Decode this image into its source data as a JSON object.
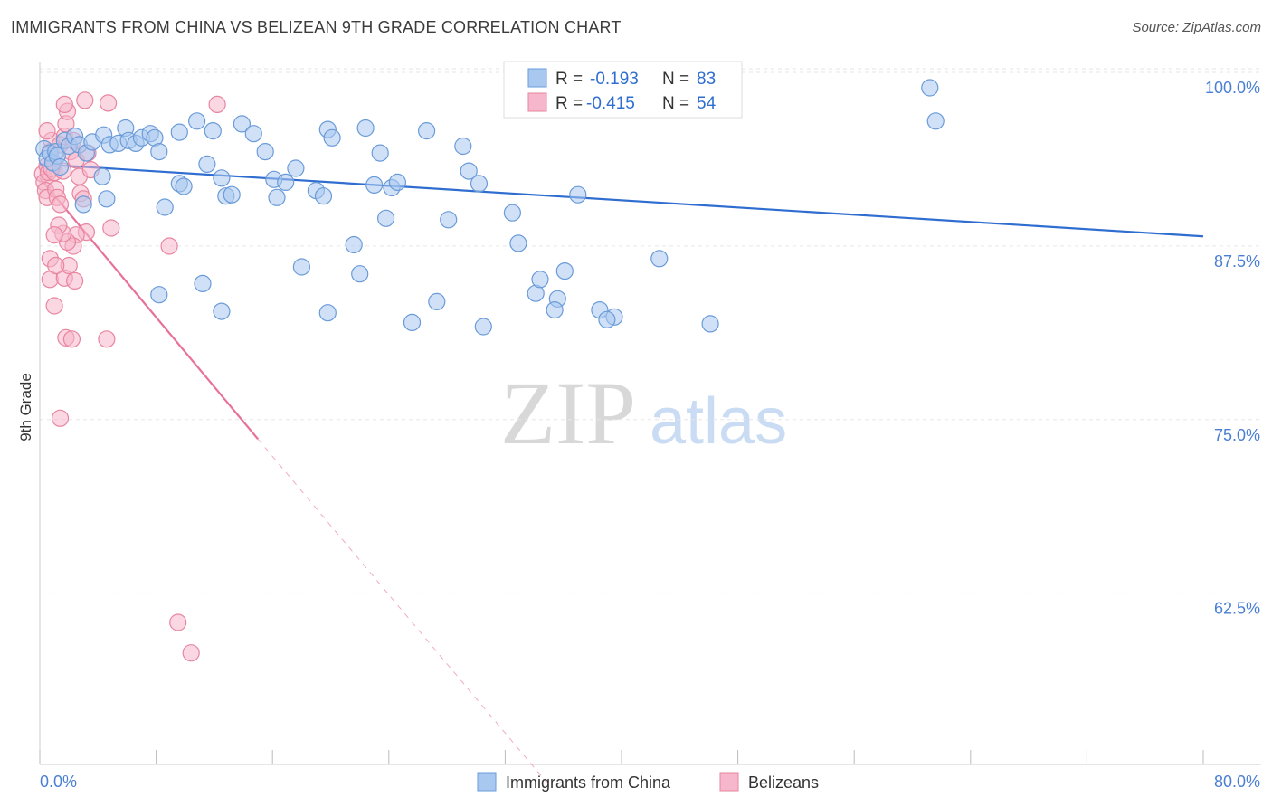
{
  "title": "IMMIGRANTS FROM CHINA VS BELIZEAN 9TH GRADE CORRELATION CHART",
  "source": "Source: ZipAtlas.com",
  "watermark": {
    "zip": "ZIP",
    "atlas": "atlas"
  },
  "colors": {
    "china_fill": "#a9c8f0",
    "china_stroke": "#6a9bd8",
    "china_line": "#2f6ed0",
    "belize_fill": "#f6b6cb",
    "belize_stroke": "#e8859f",
    "belize_line": "#e8719a",
    "tick_text": "#4a7fd4",
    "grid": "#e6e6e6"
  },
  "legend": {
    "rows": [
      {
        "r_label": "R =",
        "r_value": "-0.193",
        "n_label": "N =",
        "n_value": "83"
      },
      {
        "r_label": "R =",
        "r_value": "-0.415",
        "n_label": "N =",
        "n_value": "54"
      }
    ]
  },
  "chart_data": {
    "type": "scatter",
    "title": "IMMIGRANTS FROM CHINA VS BELIZEAN 9TH GRADE CORRELATION CHART",
    "xlabel": "",
    "ylabel": "9th Grade",
    "xlim": [
      0,
      80
    ],
    "ylim": [
      50,
      101.5
    ],
    "x_tick_labels": [
      "0.0%",
      "80.0%"
    ],
    "y_ticks": [
      62.5,
      75.0,
      87.5,
      100.0
    ],
    "y_tick_labels": [
      "62.5%",
      "75.0%",
      "87.5%",
      "100.0%"
    ],
    "grid": true,
    "legend_position": "top-center",
    "series": [
      {
        "name": "Immigrants from China",
        "r": -0.193,
        "n": 83,
        "trend": {
          "x": [
            0,
            80
          ],
          "y": [
            94.5,
            89.3
          ]
        },
        "points": [
          [
            0.3,
            95.6
          ],
          [
            0.5,
            94.9
          ],
          [
            0.7,
            95.3
          ],
          [
            0.9,
            94.6
          ],
          [
            1.1,
            95.4
          ],
          [
            1.2,
            95.1
          ],
          [
            1.4,
            94.3
          ],
          [
            1.7,
            96.2
          ],
          [
            2.0,
            95.8
          ],
          [
            2.4,
            96.5
          ],
          [
            2.7,
            95.9
          ],
          [
            3.2,
            95.3
          ],
          [
            3.6,
            96.1
          ],
          [
            4.4,
            96.6
          ],
          [
            4.8,
            95.9
          ],
          [
            5.4,
            96.0
          ],
          [
            5.9,
            97.1
          ],
          [
            6.1,
            96.2
          ],
          [
            6.6,
            96.0
          ],
          [
            7.0,
            96.4
          ],
          [
            7.6,
            96.7
          ],
          [
            7.9,
            96.4
          ],
          [
            8.2,
            95.4
          ],
          [
            9.6,
            96.8
          ],
          [
            10.8,
            97.6
          ],
          [
            11.9,
            96.9
          ],
          [
            13.9,
            97.4
          ],
          [
            14.7,
            96.7
          ],
          [
            15.5,
            95.4
          ],
          [
            9.6,
            93.1
          ],
          [
            8.6,
            91.4
          ],
          [
            9.9,
            92.9
          ],
          [
            11.5,
            94.5
          ],
          [
            12.5,
            93.5
          ],
          [
            12.8,
            92.2
          ],
          [
            13.2,
            92.3
          ],
          [
            16.1,
            93.4
          ],
          [
            16.3,
            92.1
          ],
          [
            16.9,
            93.2
          ],
          [
            17.6,
            94.2
          ],
          [
            18.0,
            87.1
          ],
          [
            19.0,
            92.6
          ],
          [
            19.5,
            92.2
          ],
          [
            19.8,
            97.0
          ],
          [
            20.1,
            96.4
          ],
          [
            22.4,
            97.1
          ],
          [
            23.0,
            93.0
          ],
          [
            23.4,
            95.3
          ],
          [
            23.8,
            90.6
          ],
          [
            24.2,
            92.8
          ],
          [
            24.6,
            93.2
          ],
          [
            21.6,
            88.7
          ],
          [
            22.0,
            86.6
          ],
          [
            26.6,
            96.9
          ],
          [
            28.1,
            90.5
          ],
          [
            29.1,
            95.8
          ],
          [
            29.5,
            94.0
          ],
          [
            30.2,
            93.1
          ],
          [
            32.5,
            91.0
          ],
          [
            32.9,
            88.8
          ],
          [
            34.1,
            85.2
          ],
          [
            34.4,
            86.2
          ],
          [
            35.6,
            84.8
          ],
          [
            35.4,
            84.0
          ],
          [
            36.1,
            86.8
          ],
          [
            37.0,
            92.3
          ],
          [
            38.5,
            84.0
          ],
          [
            39.5,
            83.5
          ],
          [
            39.0,
            83.3
          ],
          [
            30.5,
            82.8
          ],
          [
            27.3,
            84.6
          ],
          [
            25.6,
            83.1
          ],
          [
            19.8,
            83.8
          ],
          [
            12.5,
            83.9
          ],
          [
            11.2,
            85.9
          ],
          [
            8.2,
            85.1
          ],
          [
            4.3,
            93.6
          ],
          [
            4.6,
            92.0
          ],
          [
            3.0,
            91.6
          ],
          [
            42.6,
            87.7
          ],
          [
            46.1,
            83.0
          ],
          [
            61.2,
            100.0
          ],
          [
            61.6,
            97.6
          ]
        ]
      },
      {
        "name": "Belizeans",
        "r": -0.415,
        "n": 54,
        "trend": {
          "x": [
            0,
            15
          ],
          "y": [
            93.5,
            74.7
          ],
          "dashed_extension": {
            "x": [
              15,
              35
            ],
            "y": [
              74.7,
              49.8
            ]
          }
        },
        "points": [
          [
            0.2,
            93.8
          ],
          [
            0.3,
            93.2
          ],
          [
            0.4,
            92.6
          ],
          [
            0.5,
            92.1
          ],
          [
            0.5,
            94.4
          ],
          [
            0.6,
            93.9
          ],
          [
            0.7,
            95.4
          ],
          [
            0.8,
            96.2
          ],
          [
            0.9,
            94.6
          ],
          [
            1.0,
            93.9
          ],
          [
            1.1,
            92.7
          ],
          [
            1.2,
            92.1
          ],
          [
            1.4,
            95.9
          ],
          [
            1.6,
            94.0
          ],
          [
            1.7,
            96.5
          ],
          [
            1.8,
            97.4
          ],
          [
            1.9,
            98.3
          ],
          [
            2.1,
            95.4
          ],
          [
            2.3,
            96.2
          ],
          [
            2.5,
            94.8
          ],
          [
            2.7,
            93.6
          ],
          [
            2.8,
            92.4
          ],
          [
            3.0,
            92.0
          ],
          [
            3.3,
            95.3
          ],
          [
            3.5,
            94.1
          ],
          [
            3.2,
            89.6
          ],
          [
            2.5,
            89.4
          ],
          [
            2.3,
            88.6
          ],
          [
            1.9,
            88.9
          ],
          [
            1.6,
            89.5
          ],
          [
            1.3,
            90.1
          ],
          [
            1.0,
            89.4
          ],
          [
            0.7,
            86.2
          ],
          [
            1.7,
            86.3
          ],
          [
            2.0,
            87.2
          ],
          [
            2.4,
            86.1
          ],
          [
            1.0,
            84.3
          ],
          [
            1.8,
            82.0
          ],
          [
            2.2,
            81.9
          ],
          [
            4.6,
            81.9
          ],
          [
            1.4,
            76.2
          ],
          [
            0.5,
            96.9
          ],
          [
            0.8,
            94.2
          ],
          [
            1.4,
            91.6
          ],
          [
            3.1,
            99.1
          ],
          [
            4.7,
            98.9
          ],
          [
            12.2,
            98.8
          ],
          [
            1.7,
            98.8
          ],
          [
            0.7,
            87.7
          ],
          [
            1.1,
            87.2
          ],
          [
            4.9,
            89.9
          ],
          [
            8.9,
            88.6
          ],
          [
            9.5,
            61.5
          ],
          [
            10.4,
            59.3
          ]
        ]
      }
    ]
  }
}
